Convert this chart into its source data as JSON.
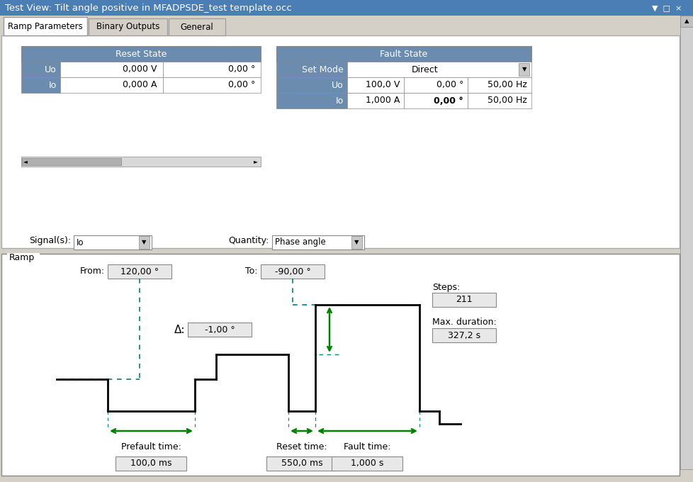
{
  "title": "Test View: Tilt angle positive in MFADPSDE_test template.occ",
  "title_bg": "#4a7eb5",
  "title_fg": "white",
  "window_bg": "#d4d0c8",
  "tab_active": "Ramp Parameters",
  "tabs": [
    "Ramp Parameters",
    "Binary Outputs",
    "General"
  ],
  "header_color": "#6b8cae",
  "reset_state_header": "Reset State",
  "fault_state_header": "Fault State",
  "reset_rows": [
    {
      "label": "Uo",
      "val1": "0,000 V",
      "val2": "0,00 °"
    },
    {
      "label": "Io",
      "val1": "0,000 A",
      "val2": "0,00 °"
    }
  ],
  "fault_set_mode": "Direct",
  "fault_rows": [
    {
      "label": "Uo",
      "val1": "100,0 V",
      "val2": "0,00 °",
      "val3": "50,00 Hz",
      "bold_val2": false
    },
    {
      "label": "Io",
      "val1": "1,000 A",
      "val2": "0,00 °",
      "val3": "50,00 Hz",
      "bold_val2": true
    }
  ],
  "signals_label": "Signal(s):",
  "signals_value": "Io",
  "quantity_label": "Quantity:",
  "quantity_value": "Phase angle",
  "ramp_label": "Ramp",
  "from_label": "From:",
  "from_value": "120,00 °",
  "to_label": "To:",
  "to_value": "-90,00 °",
  "delta_label": "Δ:",
  "delta_value": "-1,00 °",
  "steps_label": "Steps:",
  "steps_value": "211",
  "max_duration_label": "Max. duration:",
  "max_duration_value": "327,2 s",
  "prefault_label": "Prefault time:",
  "prefault_value": "100,0 ms",
  "reset_time_label": "Reset time:",
  "reset_time_value": "550,0 ms",
  "fault_time_label": "Fault time:",
  "fault_time_value": "1,000 s",
  "green_color": "#008000",
  "teal_color": "#008080",
  "pulse_color": "#000000",
  "scrollbar_color": "#a0a0a0",
  "input_bg": "#e8e8e8"
}
